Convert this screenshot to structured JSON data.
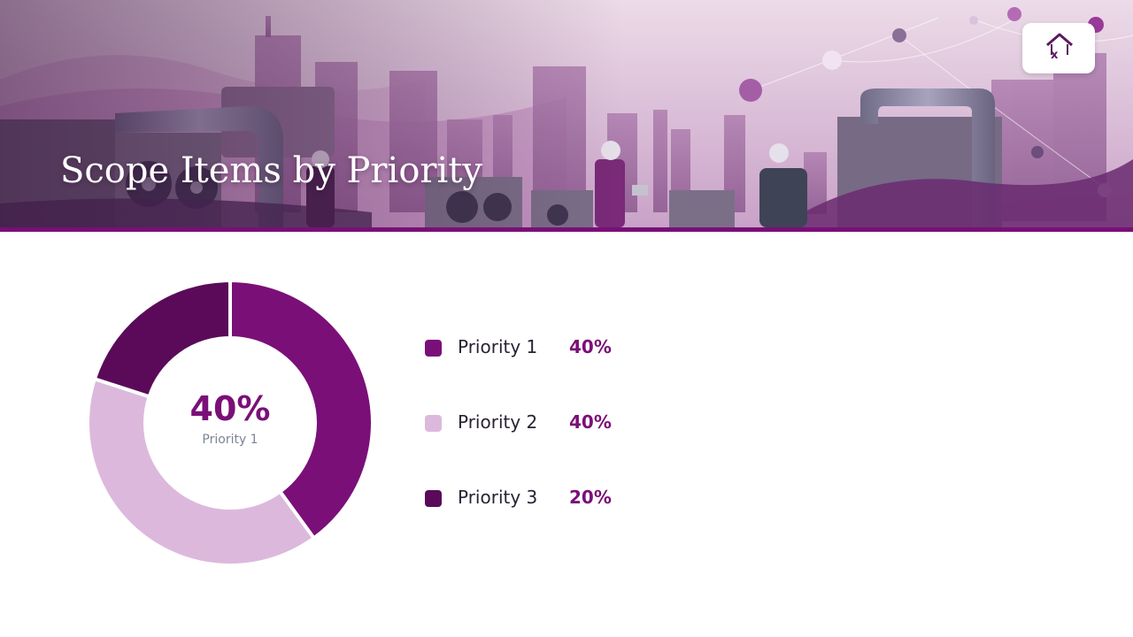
{
  "slide": {
    "title": "Scope Items by Priority"
  },
  "logo": {
    "icon": "house-logo-icon",
    "mark": "x"
  },
  "donut_center": {
    "value": "40%",
    "label": "Priority 1"
  },
  "legend": [
    {
      "label": "Priority 1",
      "value": "40%",
      "color": "#7a0f78"
    },
    {
      "label": "Priority 2",
      "value": "40%",
      "color": "#dcb9dc"
    },
    {
      "label": "Priority 3",
      "value": "20%",
      "color": "#5a0a59"
    }
  ],
  "colors": {
    "accent": "#7a0f78",
    "banner_rule": "#7a0f78"
  },
  "chart_data": {
    "type": "pie",
    "variant": "donut",
    "categories": [
      "Priority 1",
      "Priority 2",
      "Priority 3"
    ],
    "values": [
      40,
      40,
      20
    ],
    "unit": "%",
    "colors": [
      "#7a0f78",
      "#dcb9dc",
      "#5a0a59"
    ],
    "legend_position": "right",
    "title": "Scope Items by Priority"
  }
}
